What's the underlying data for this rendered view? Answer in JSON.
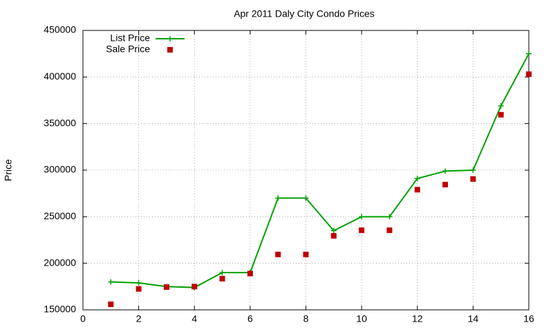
{
  "chart_data": {
    "type": "line",
    "title": "Apr 2011 Daly City Condo Prices",
    "y_label": "Price",
    "x": [
      1,
      2,
      3,
      4,
      5,
      6,
      7,
      8,
      9,
      10,
      11,
      12,
      13,
      14,
      15,
      16
    ],
    "series": [
      {
        "name": "List Price",
        "color": "#00a000",
        "style": "linespoints",
        "values": [
          180000,
          179000,
          175000,
          174000,
          190000,
          190000,
          270000,
          270000,
          235000,
          250000,
          250000,
          291000,
          299000,
          300000,
          369000,
          425000
        ]
      },
      {
        "name": "Sale Price",
        "color": "#c00000",
        "style": "points",
        "values": [
          156000,
          172500,
          174500,
          175000,
          183500,
          189000,
          209500,
          209500,
          229500,
          235500,
          235500,
          279000,
          284500,
          290500,
          359500,
          403000
        ]
      }
    ],
    "xlim": [
      0,
      16
    ],
    "xticks": [
      0,
      2,
      4,
      6,
      8,
      10,
      12,
      14,
      16
    ],
    "ylim": [
      150000,
      450000
    ],
    "yticks": [
      150000,
      200000,
      250000,
      300000,
      350000,
      400000,
      450000
    ],
    "grid": true,
    "legend": "top-left"
  }
}
